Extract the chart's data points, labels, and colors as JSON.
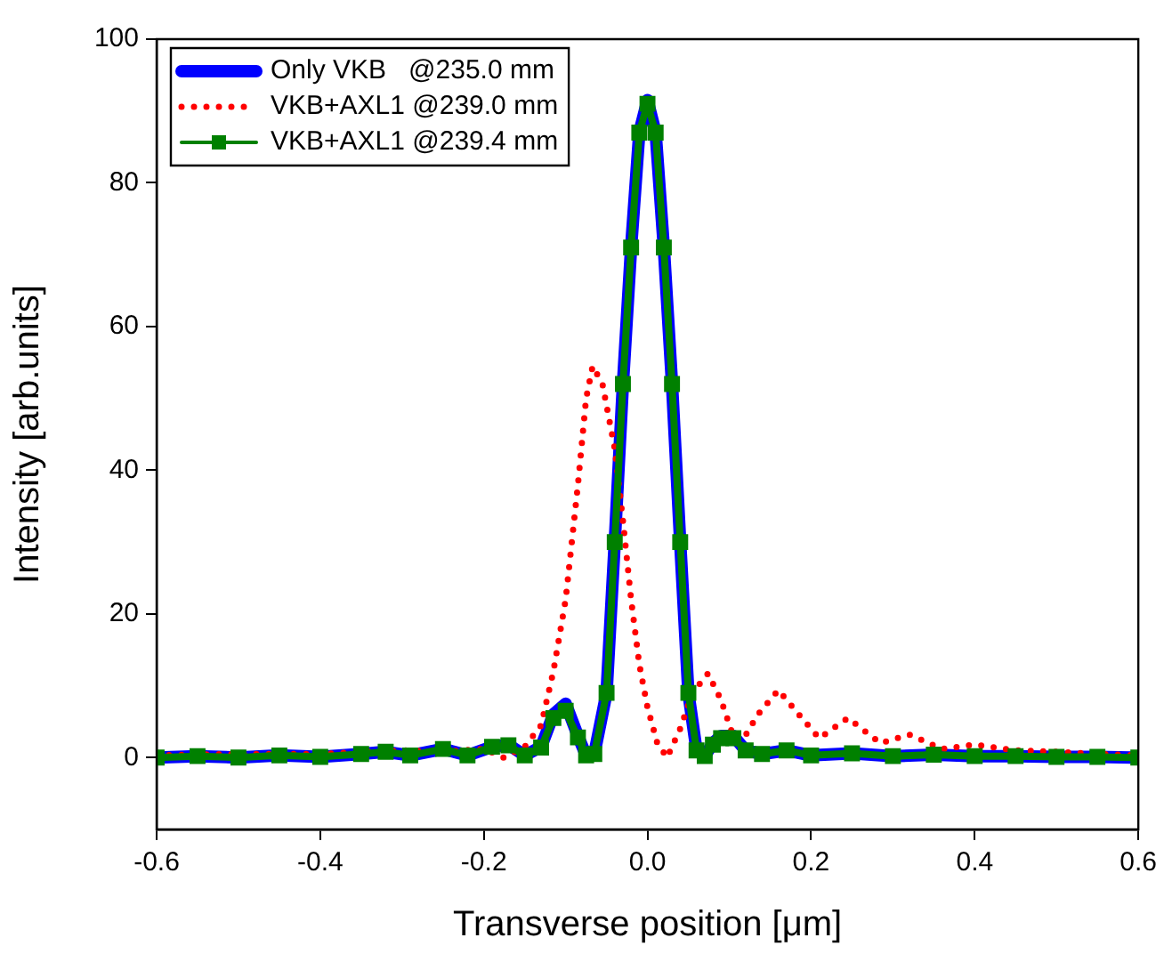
{
  "chart_data": {
    "type": "line",
    "xlabel": "Transverse position [μm]",
    "ylabel": "Intensity [arb.units]",
    "xlim": [
      -0.6,
      0.6
    ],
    "ylim": [
      -10,
      100
    ],
    "xticks": [
      -0.6,
      -0.4,
      -0.2,
      {
        "value": 0,
        "label": "0.0"
      },
      0.2,
      0.4,
      0.6
    ],
    "yticks": [
      0,
      20,
      40,
      60,
      80,
      100
    ],
    "grid": false,
    "legend": "top left",
    "series": [
      {
        "name": "Only VKB   @235.0 mm",
        "color": "#0000ff",
        "line_style": "solid",
        "marker": "none",
        "x": [
          -0.6,
          -0.55,
          -0.5,
          -0.45,
          -0.4,
          -0.35,
          -0.32,
          -0.29,
          -0.25,
          -0.22,
          -0.19,
          -0.17,
          -0.15,
          -0.13,
          -0.115,
          -0.1,
          -0.085,
          -0.075,
          -0.065,
          -0.05,
          -0.04,
          -0.03,
          -0.02,
          -0.01,
          0,
          0.01,
          0.02,
          0.03,
          0.04,
          0.05,
          0.06,
          0.07,
          0.08,
          0.09,
          0.105,
          0.12,
          0.14,
          0.17,
          0.2,
          0.25,
          0.3,
          0.35,
          0.4,
          0.45,
          0.5,
          0.55,
          0.6
        ],
        "values": [
          0,
          0.2,
          0,
          0.3,
          0.1,
          0.5,
          0.8,
          0.3,
          1.2,
          0.3,
          1.5,
          1.8,
          0.3,
          1.5,
          6,
          7.5,
          3,
          0.3,
          0.5,
          9,
          30,
          52,
          71,
          87,
          91.5,
          87,
          71,
          52,
          30,
          9,
          1,
          0.2,
          2,
          3,
          3,
          1,
          0.5,
          1,
          0.3,
          0.6,
          0.2,
          0.4,
          0.2,
          0.2,
          0.1,
          0.1,
          0
        ]
      },
      {
        "name": "VKB+AXL1 @239.0 mm",
        "color": "#ff0000",
        "line_style": "dotted",
        "marker": "none",
        "x": [
          -0.6,
          -0.5,
          -0.4,
          -0.3,
          -0.25,
          -0.2,
          -0.176,
          -0.15,
          -0.13,
          -0.115,
          -0.1,
          -0.085,
          -0.075,
          -0.067,
          -0.055,
          -0.04,
          -0.03,
          -0.02,
          -0.01,
          0,
          0.012,
          0.024,
          0.04,
          0.055,
          0.074,
          0.09,
          0.11,
          0.135,
          0.16,
          0.185,
          0.21,
          0.245,
          0.285,
          0.32,
          0.36,
          0.4,
          0.45,
          0.5,
          0.55,
          0.6
        ],
        "values": [
          0.3,
          0.5,
          0.5,
          1,
          0.8,
          1.2,
          0,
          1.5,
          4.5,
          12,
          22,
          38,
          50,
          54.5,
          52,
          43,
          33,
          22,
          13,
          7,
          2,
          0,
          4,
          9,
          11.7,
          8,
          1.2,
          6,
          9.4,
          6,
          2.7,
          5.5,
          2,
          3.2,
          1.2,
          1.8,
          1,
          0.8,
          0.5,
          0.3
        ]
      },
      {
        "name": "VKB+AXL1 @239.4 mm",
        "color": "#008000",
        "line_style": "solid",
        "marker": "square",
        "x": [
          -0.6,
          -0.55,
          -0.5,
          -0.45,
          -0.4,
          -0.35,
          -0.32,
          -0.29,
          -0.25,
          -0.22,
          -0.19,
          -0.17,
          -0.15,
          -0.13,
          -0.115,
          -0.1,
          -0.085,
          -0.075,
          -0.065,
          -0.05,
          -0.04,
          -0.03,
          -0.02,
          -0.01,
          0,
          0.01,
          0.02,
          0.03,
          0.04,
          0.05,
          0.06,
          0.07,
          0.08,
          0.09,
          0.105,
          0.12,
          0.14,
          0.17,
          0.2,
          0.25,
          0.3,
          0.35,
          0.4,
          0.45,
          0.5,
          0.55,
          0.6
        ],
        "values": [
          0,
          0.2,
          0,
          0.3,
          0.1,
          0.5,
          0.8,
          0.3,
          1.2,
          0.3,
          1.5,
          1.7,
          0.3,
          1.4,
          5.5,
          6.5,
          2.8,
          0.3,
          0.5,
          9,
          30,
          52,
          71,
          87,
          91,
          87,
          71,
          52,
          30,
          9,
          1,
          0.2,
          1.8,
          2.7,
          2.7,
          1,
          0.5,
          1,
          0.3,
          0.6,
          0.2,
          0.4,
          0.2,
          0.2,
          0.1,
          0.1,
          0
        ]
      }
    ]
  }
}
